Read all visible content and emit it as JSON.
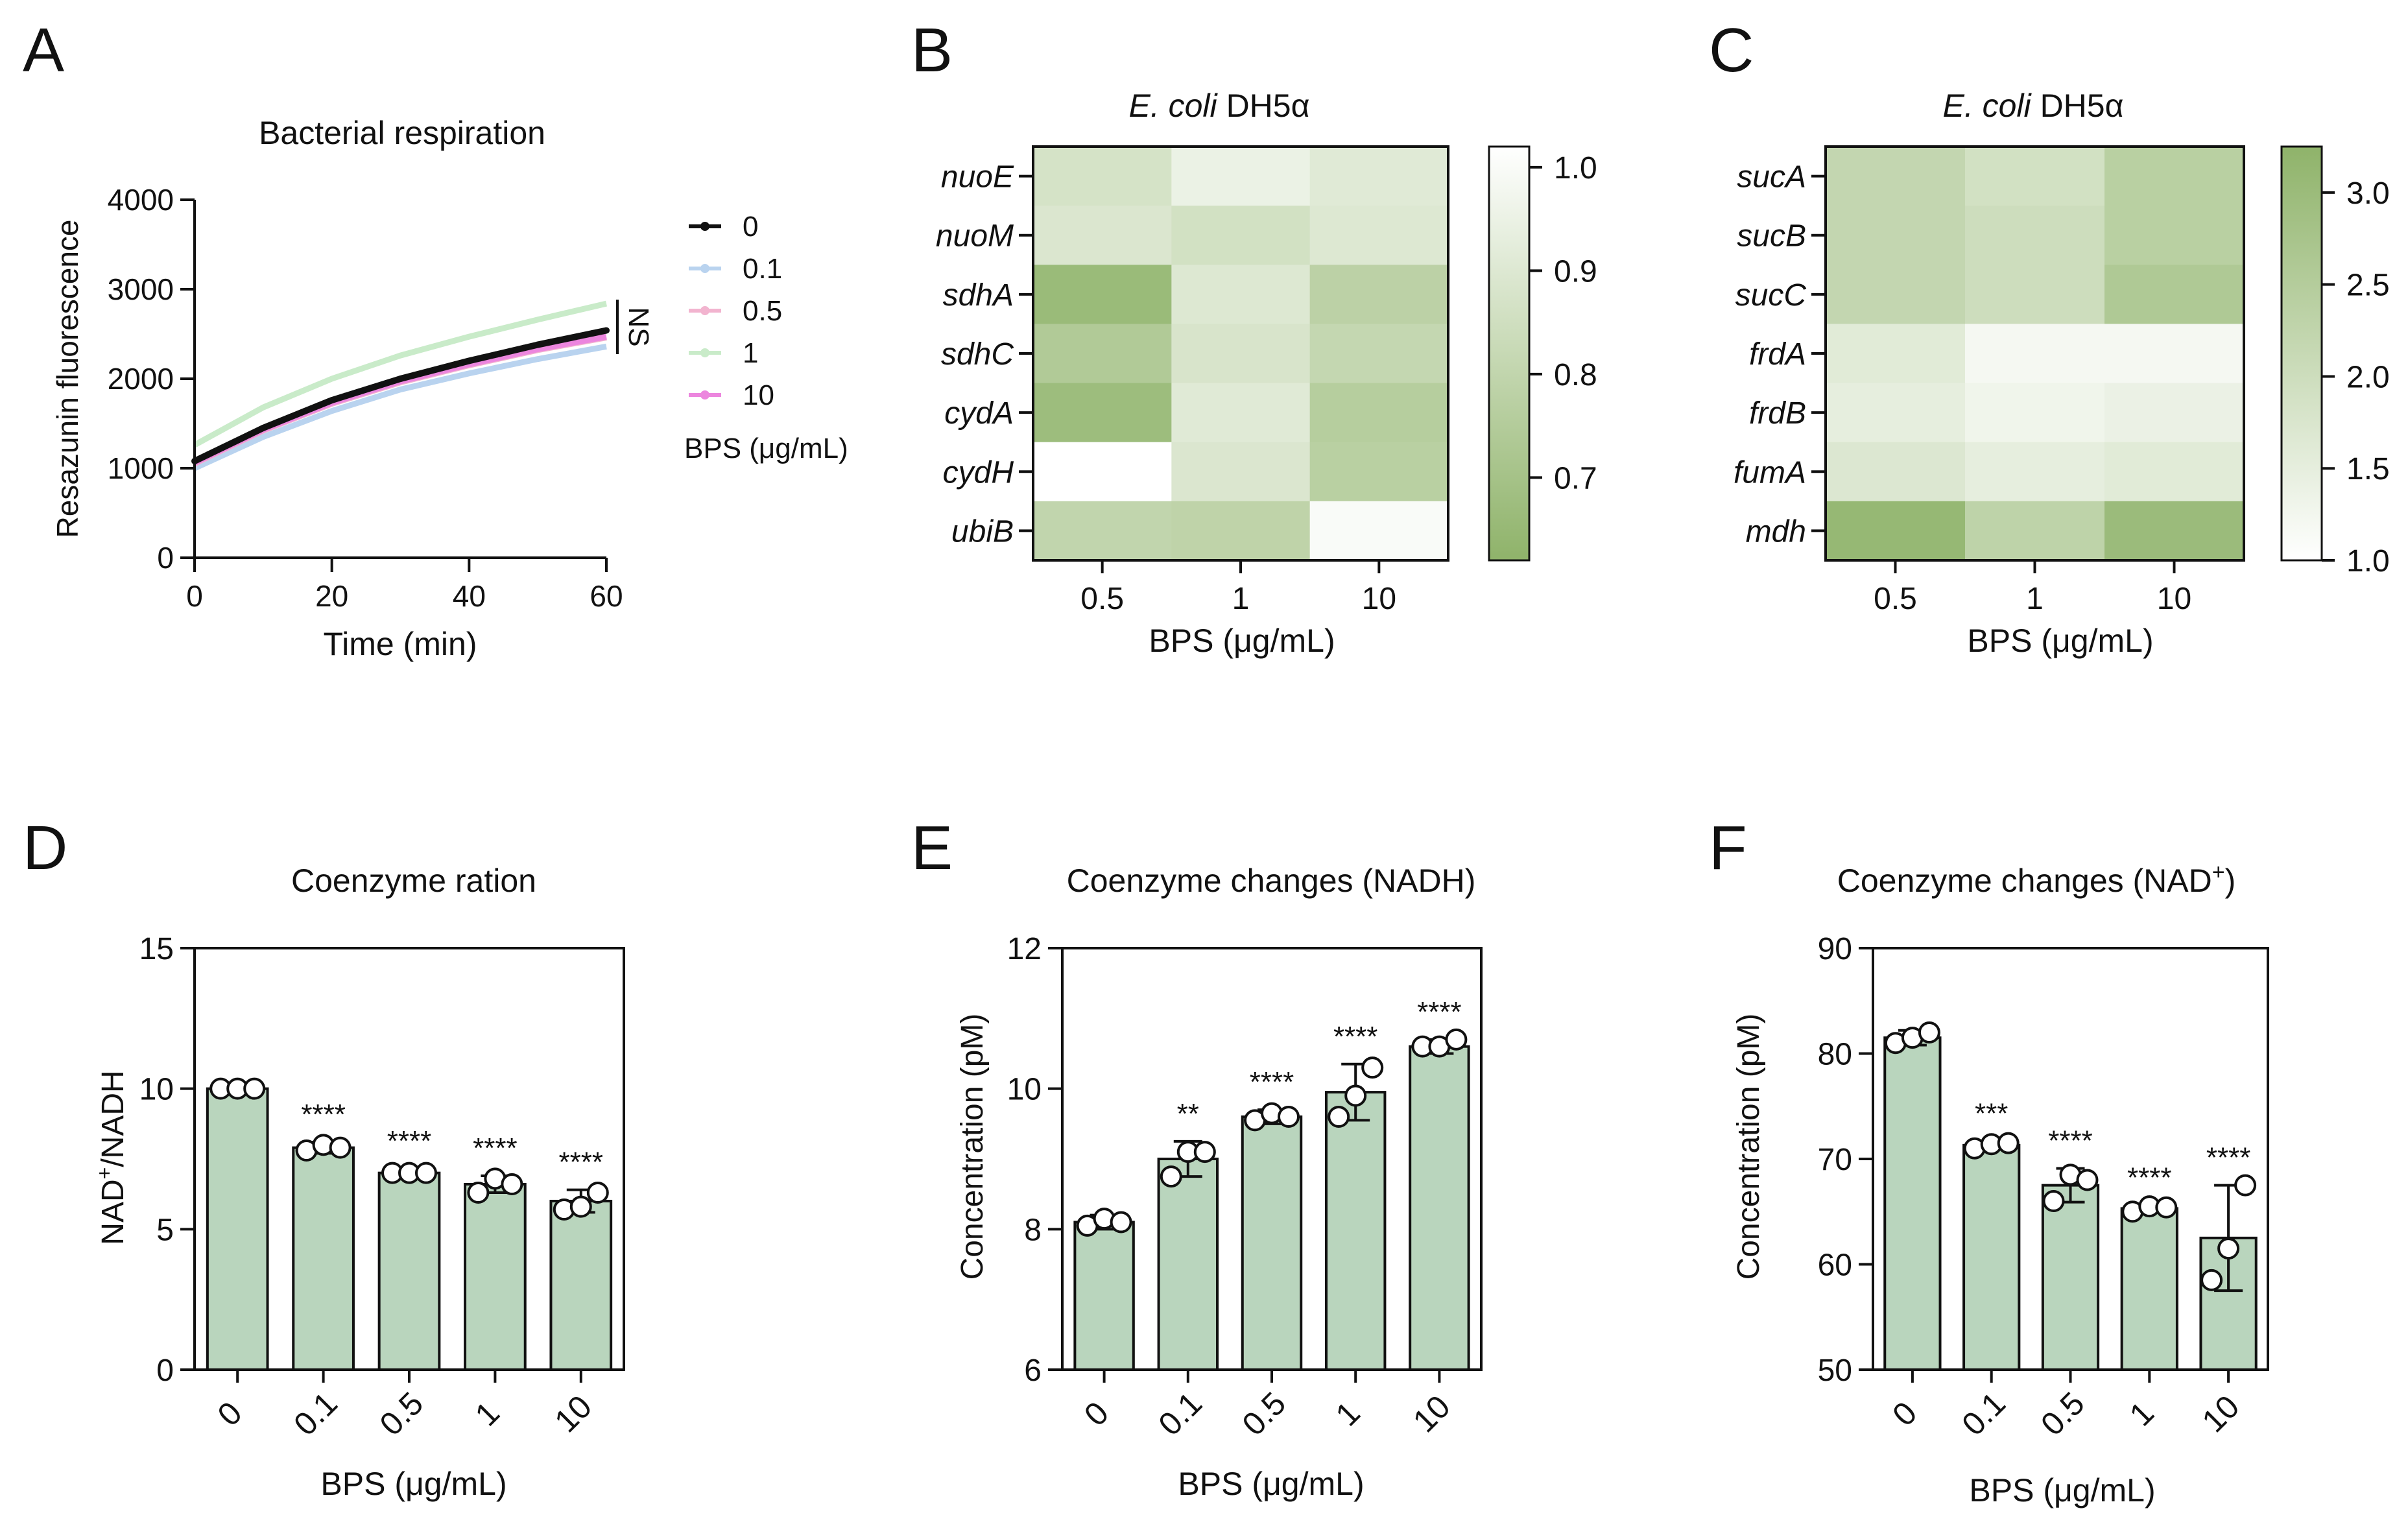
{
  "figure": {
    "panel_labels": [
      "A",
      "B",
      "C",
      "D",
      "E",
      "F"
    ]
  },
  "chart_data": [
    {
      "panel": "A",
      "type": "line",
      "title": "Bacterial respiration",
      "xlabel": "Time (min)",
      "ylabel": "Resazunin fluorescence",
      "xlim": [
        0,
        60
      ],
      "ylim": [
        0,
        4000
      ],
      "xticks": [
        "0",
        "20",
        "40",
        "60"
      ],
      "yticks": [
        "0",
        "1000",
        "2000",
        "3000",
        "4000"
      ],
      "x": [
        0,
        10,
        20,
        30,
        40,
        50,
        60
      ],
      "series": [
        {
          "name": "0",
          "color": "#111111",
          "values": [
            1080,
            1450,
            1760,
            2000,
            2200,
            2380,
            2540
          ]
        },
        {
          "name": "0.1",
          "color": "#b9d3ef",
          "values": [
            1000,
            1350,
            1640,
            1880,
            2060,
            2220,
            2360
          ]
        },
        {
          "name": "0.5",
          "color": "#f2b4cf",
          "values": [
            1050,
            1420,
            1720,
            1960,
            2150,
            2320,
            2460
          ]
        },
        {
          "name": "1",
          "color": "#c9ebc9",
          "values": [
            1260,
            1680,
            2000,
            2260,
            2470,
            2660,
            2840
          ]
        },
        {
          "name": "10",
          "color": "#ec86de",
          "values": [
            1060,
            1430,
            1730,
            1970,
            2160,
            2330,
            2470
          ]
        }
      ],
      "legend_title": "BPS (μg/mL)",
      "annotation": "NS"
    },
    {
      "panel": "B",
      "type": "heatmap",
      "title_italic": "E. coli",
      "title_rest": "DH5α",
      "rows": [
        "nuoE",
        "nuoM",
        "sdhA",
        "sdhC",
        "cydA",
        "cydH",
        "ubiB"
      ],
      "columns": [
        "0.5",
        "1",
        "10"
      ],
      "xlabel": "BPS (μg/mL)",
      "values": [
        [
          0.87,
          0.95,
          0.91
        ],
        [
          0.89,
          0.86,
          0.9
        ],
        [
          0.66,
          0.9,
          0.78
        ],
        [
          0.74,
          0.88,
          0.81
        ],
        [
          0.67,
          0.91,
          0.76
        ],
        [
          1.02,
          0.89,
          0.77
        ],
        [
          0.8,
          0.79,
          1.0
        ]
      ],
      "colorbar_range": [
        0.62,
        1.02
      ],
      "colorbar_ticks": [
        "1.0",
        "0.9",
        "0.8",
        "0.7"
      ],
      "color_low": "#8fb36a",
      "color_high": "#ffffff"
    },
    {
      "panel": "C",
      "type": "heatmap",
      "title_italic": "E. coli",
      "title_rest": "DH5α",
      "rows": [
        "sucA",
        "sucB",
        "sucC",
        "frdA",
        "frdB",
        "fumA",
        "mdh"
      ],
      "columns": [
        "0.5",
        "1",
        "10"
      ],
      "xlabel": "BPS (μg/mL)",
      "values": [
        [
          2.2,
          1.9,
          2.4
        ],
        [
          2.2,
          2.0,
          2.4
        ],
        [
          2.2,
          2.0,
          2.6
        ],
        [
          1.6,
          1.2,
          1.2
        ],
        [
          1.5,
          1.3,
          1.4
        ],
        [
          1.7,
          1.5,
          1.6
        ],
        [
          3.1,
          2.3,
          3.0
        ]
      ],
      "colorbar_range": [
        1.0,
        3.25
      ],
      "colorbar_ticks": [
        "3.0",
        "2.5",
        "2.0",
        "1.5",
        "1.0"
      ],
      "color_low": "#ffffff",
      "color_high": "#8fb36a"
    },
    {
      "panel": "D",
      "type": "bar",
      "title": "Coenzyme ration",
      "ylabel_html": [
        "NAD",
        "+",
        "/NADH"
      ],
      "xlabel": "BPS (μg/mL)",
      "categories": [
        "0",
        "0.1",
        "0.5",
        "1",
        "10"
      ],
      "values": [
        10.0,
        7.9,
        7.0,
        6.6,
        6.0
      ],
      "errors": [
        0.05,
        0.2,
        0.15,
        0.3,
        0.4
      ],
      "points": [
        [
          10.0,
          10.0,
          10.0
        ],
        [
          7.8,
          8.0,
          7.9
        ],
        [
          7.0,
          7.0,
          7.0
        ],
        [
          6.3,
          6.8,
          6.6
        ],
        [
          5.7,
          5.8,
          6.3
        ]
      ],
      "significance": [
        "",
        "****",
        "****",
        "****",
        "****"
      ],
      "ylim": [
        0,
        15
      ],
      "yticks": [
        "0",
        "5",
        "10",
        "15"
      ]
    },
    {
      "panel": "E",
      "type": "bar",
      "title": "Coenzyme changes (NADH)",
      "ylabel": "Concentration (pM)",
      "xlabel": "BPS (μg/mL)",
      "categories": [
        "0",
        "0.1",
        "0.5",
        "1",
        "10"
      ],
      "values": [
        8.1,
        9.0,
        9.6,
        9.95,
        10.6
      ],
      "errors": [
        0.1,
        0.25,
        0.1,
        0.4,
        0.1
      ],
      "points": [
        [
          8.05,
          8.15,
          8.1
        ],
        [
          8.75,
          9.1,
          9.1
        ],
        [
          9.55,
          9.65,
          9.6
        ],
        [
          9.6,
          9.9,
          10.3
        ],
        [
          10.6,
          10.6,
          10.7
        ]
      ],
      "significance": [
        "",
        "**",
        "****",
        "****",
        "****"
      ],
      "ylim": [
        6,
        12
      ],
      "yticks": [
        "6",
        "8",
        "10",
        "12"
      ]
    },
    {
      "panel": "F",
      "type": "bar",
      "title": "Coenzyme changes (NAD",
      "title_sup": "+",
      "title_end": ")",
      "ylabel": "Concentration (pM)",
      "xlabel": "BPS (μg/mL)",
      "categories": [
        "0",
        "0.1",
        "0.5",
        "1",
        "10"
      ],
      "values": [
        81.5,
        71.3,
        67.5,
        65.3,
        62.5
      ],
      "errors": [
        0.7,
        0.4,
        1.6,
        0.3,
        5.0
      ],
      "points": [
        [
          81.0,
          81.5,
          82.0
        ],
        [
          71.0,
          71.4,
          71.5
        ],
        [
          66.0,
          68.5,
          68.0
        ],
        [
          65.0,
          65.5,
          65.4
        ],
        [
          58.5,
          61.5,
          67.5
        ]
      ],
      "significance": [
        "",
        "***",
        "****",
        "****",
        "****"
      ],
      "ylim": [
        50,
        90
      ],
      "yticks": [
        "50",
        "60",
        "70",
        "80",
        "90"
      ]
    }
  ]
}
